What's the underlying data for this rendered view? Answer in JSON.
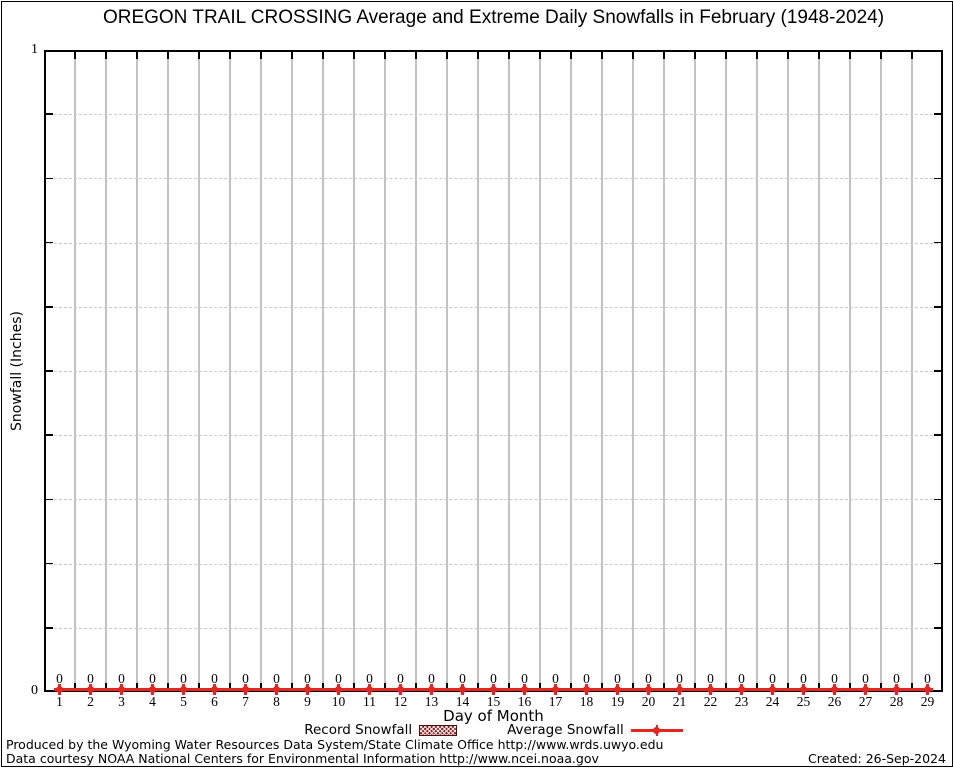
{
  "title": "OREGON TRAIL CROSSING Average and Extreme Daily Snowfalls in February (1948-2024)",
  "chart_data": {
    "type": "line",
    "title": "OREGON TRAIL CROSSING Average and Extreme Daily Snowfalls in February (1948-2024)",
    "xlabel": "Day of Month",
    "ylabel": "Snowfall (Inches)",
    "x": [
      1,
      2,
      3,
      4,
      5,
      6,
      7,
      8,
      9,
      10,
      11,
      12,
      13,
      14,
      15,
      16,
      17,
      18,
      19,
      20,
      21,
      22,
      23,
      24,
      25,
      26,
      27,
      28,
      29
    ],
    "series": [
      {
        "name": "Record Snowfall",
        "style": "hatched-box",
        "color": "#8b1c1c",
        "values": [
          0,
          0,
          0,
          0,
          0,
          0,
          0,
          0,
          0,
          0,
          0,
          0,
          0,
          0,
          0,
          0,
          0,
          0,
          0,
          0,
          0,
          0,
          0,
          0,
          0,
          0,
          0,
          0,
          0
        ]
      },
      {
        "name": "Average Snowfall",
        "style": "line-point",
        "color": "#e52620",
        "values": [
          0,
          0,
          0,
          0,
          0,
          0,
          0,
          0,
          0,
          0,
          0,
          0,
          0,
          0,
          0,
          0,
          0,
          0,
          0,
          0,
          0,
          0,
          0,
          0,
          0,
          0,
          0,
          0,
          0
        ]
      }
    ],
    "point_labels": [
      "0",
      "0",
      "0",
      "0",
      "0",
      "0",
      "0",
      "0",
      "0",
      "0",
      "0",
      "0",
      "0",
      "0",
      "0",
      "0",
      "0",
      "0",
      "0",
      "0",
      "0",
      "0",
      "0",
      "0",
      "0",
      "0",
      "0",
      "0",
      "0"
    ],
    "ylim": [
      0,
      1
    ],
    "ytick_labels": [
      "0",
      "1"
    ],
    "minor_ytick_step": 0.1,
    "grid": "vertical-solid, horizontal-dashed-minor",
    "legend_position": "bottom-center"
  },
  "axis": {
    "y_max_label": "1",
    "y_min_label": "0"
  },
  "footer": {
    "produced_by": "Produced by the Wyoming Water Resources Data System/State Climate Office http://www.wrds.uwyo.edu",
    "data_courtesy": "Data courtesy NOAA National Centers for Environmental Information http://www.ncei.noaa.gov",
    "created": "Created: 26-Sep-2024"
  },
  "colors": {
    "accent_red": "#e52620",
    "record_maroon": "#8b1c1c",
    "vgrid_gray": "#c2c2c2",
    "hgrid_gray": "#cbcbcb",
    "axis_black": "#000000"
  }
}
